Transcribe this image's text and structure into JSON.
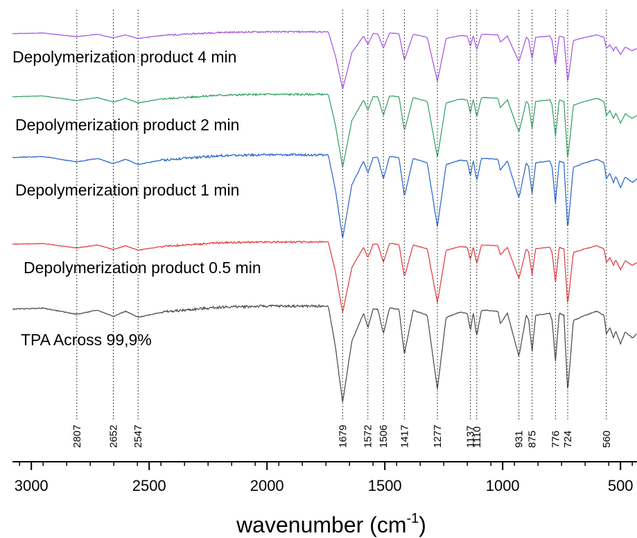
{
  "chart_data": {
    "type": "line",
    "title": "",
    "xlabel": "wavenumber (cm",
    "xlabel_sup": "-1",
    "xlabel_close": ")",
    "ylabel": "",
    "x_reversed": true,
    "xlim": [
      3080,
      430
    ],
    "x_ticks": [
      3000,
      2500,
      2000,
      1500,
      1000,
      500
    ],
    "x_tick_labels": [
      "3000",
      "2500",
      "2000",
      "1500",
      "1000",
      "500"
    ],
    "peak_markers": [
      2807,
      2652,
      2547,
      1679,
      1572,
      1506,
      1417,
      1277,
      1137,
      1110,
      931,
      875,
      776,
      724,
      560
    ],
    "peak_labels": [
      "2807",
      "2652",
      "2547",
      "1679",
      "1572",
      "1506",
      "1417",
      "1277",
      "1137",
      "1110",
      "931",
      "875",
      "776",
      "724",
      "560"
    ],
    "grid": false,
    "legend": "inline labels above each trace",
    "series": [
      {
        "name": "Depolymerization product 4 min",
        "color": "#a04ee0",
        "offset": 4
      },
      {
        "name": "Depolymerization product 2 min",
        "color": "#2e9b5f",
        "offset": 3
      },
      {
        "name": "Depolymerization product 1 min",
        "color": "#1f5fc9",
        "offset": 2
      },
      {
        "name": "Depolymerization product 0.5 min",
        "color": "#e03434",
        "offset": 1
      },
      {
        "name": "TPA Across 99,9%",
        "color": "#444444",
        "offset": 0
      }
    ],
    "transmittance_profile": {
      "x": [
        3080,
        2950,
        2807,
        2720,
        2652,
        2600,
        2547,
        2450,
        2200,
        2000,
        1800,
        1740,
        1710,
        1679,
        1640,
        1590,
        1572,
        1550,
        1530,
        1506,
        1480,
        1440,
        1417,
        1380,
        1320,
        1277,
        1240,
        1180,
        1150,
        1137,
        1125,
        1110,
        1090,
        1020,
        1010,
        980,
        931,
        900,
        890,
        875,
        860,
        800,
        790,
        776,
        760,
        740,
        724,
        700,
        650,
        600,
        570,
        560,
        545,
        530,
        520,
        500,
        480,
        450,
        430
      ],
      "y": [
        0.96,
        0.97,
        0.91,
        0.95,
        0.89,
        0.94,
        0.88,
        0.93,
        0.98,
        0.99,
        0.99,
        0.99,
        0.6,
        0.05,
        0.65,
        0.92,
        0.78,
        0.96,
        0.96,
        0.72,
        0.97,
        0.96,
        0.52,
        0.95,
        0.9,
        0.18,
        0.88,
        0.93,
        0.92,
        0.75,
        0.93,
        0.7,
        0.95,
        0.94,
        0.82,
        0.92,
        0.5,
        0.9,
        0.86,
        0.55,
        0.9,
        0.92,
        0.85,
        0.45,
        0.92,
        0.9,
        0.15,
        0.85,
        0.9,
        0.94,
        0.9,
        0.72,
        0.78,
        0.68,
        0.75,
        0.62,
        0.74,
        0.68,
        0.72
      ]
    }
  }
}
